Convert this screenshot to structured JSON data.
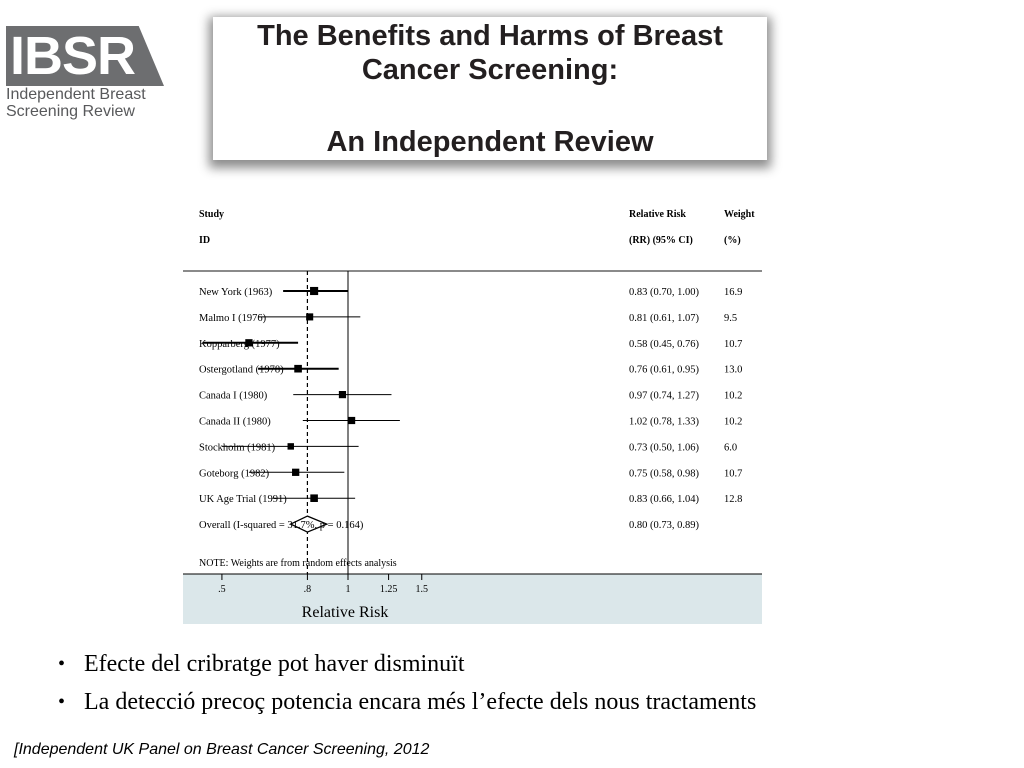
{
  "logo": {
    "mark": "IBSR",
    "line1": "Independent Breast",
    "line2": "Screening Review"
  },
  "title_card": {
    "line1": "The Benefits and Harms of Breast Cancer Screening:",
    "line2": "An Independent Review"
  },
  "bullets": [
    "Efecte del cribratge pot haver disminuït",
    "La detecció precoç potencia encara més l’efecte dels nous tractaments"
  ],
  "citation": "[Independent UK Panel on Breast Cancer Screening, 2012",
  "chart_data": {
    "type": "forest",
    "header": {
      "study_line1": "Study",
      "study_line2": "ID",
      "rr_line1": "Relative Risk",
      "rr_line2": "(RR) (95% CI)",
      "weight_line1": "Weight",
      "weight_line2": "(%)"
    },
    "studies": [
      {
        "label": "New York (1963)",
        "rr": 0.83,
        "lo": 0.7,
        "hi": 1.0,
        "rr_text": "0.83 (0.70, 1.00)",
        "weight": 16.9,
        "weight_text": "16.9"
      },
      {
        "label": "Malmo I (1976)",
        "rr": 0.81,
        "lo": 0.61,
        "hi": 1.07,
        "rr_text": "0.81 (0.61, 1.07)",
        "weight": 9.5,
        "weight_text": "9.5"
      },
      {
        "label": "Kopparberg (1977)",
        "rr": 0.58,
        "lo": 0.45,
        "hi": 0.76,
        "rr_text": "0.58 (0.45, 0.76)",
        "weight": 10.7,
        "weight_text": "10.7"
      },
      {
        "label": "Ostergotland (1978)",
        "rr": 0.76,
        "lo": 0.61,
        "hi": 0.95,
        "rr_text": "0.76 (0.61, 0.95)",
        "weight": 13.0,
        "weight_text": "13.0"
      },
      {
        "label": "Canada I (1980)",
        "rr": 0.97,
        "lo": 0.74,
        "hi": 1.27,
        "rr_text": "0.97 (0.74, 1.27)",
        "weight": 10.2,
        "weight_text": "10.2"
      },
      {
        "label": "Canada II (1980)",
        "rr": 1.02,
        "lo": 0.78,
        "hi": 1.33,
        "rr_text": "1.02 (0.78, 1.33)",
        "weight": 10.2,
        "weight_text": "10.2"
      },
      {
        "label": "Stockholm (1981)",
        "rr": 0.73,
        "lo": 0.5,
        "hi": 1.06,
        "rr_text": "0.73 (0.50, 1.06)",
        "weight": 6.0,
        "weight_text": "6.0"
      },
      {
        "label": "Goteborg (1982)",
        "rr": 0.75,
        "lo": 0.58,
        "hi": 0.98,
        "rr_text": "0.75 (0.58, 0.98)",
        "weight": 10.7,
        "weight_text": "10.7"
      },
      {
        "label": "UK Age Trial (1991)",
        "rr": 0.83,
        "lo": 0.66,
        "hi": 1.04,
        "rr_text": "0.83 (0.66, 1.04)",
        "weight": 12.8,
        "weight_text": "12.8"
      }
    ],
    "overall": {
      "label": "Overall  (I-squared = 31.7%, p = 0.164)",
      "rr": 0.8,
      "lo": 0.73,
      "hi": 0.89,
      "rr_text": "0.80 (0.73, 0.89)"
    },
    "note": "NOTE: Weights are from random effects analysis",
    "x_scale": "log",
    "ticks": [
      0.5,
      0.8,
      1,
      1.25,
      1.5
    ],
    "tick_labels": [
      ".5",
      ".8",
      "1",
      "1.25",
      "1.5"
    ],
    "xlabel": "Relative Risk",
    "null_value": 1
  }
}
